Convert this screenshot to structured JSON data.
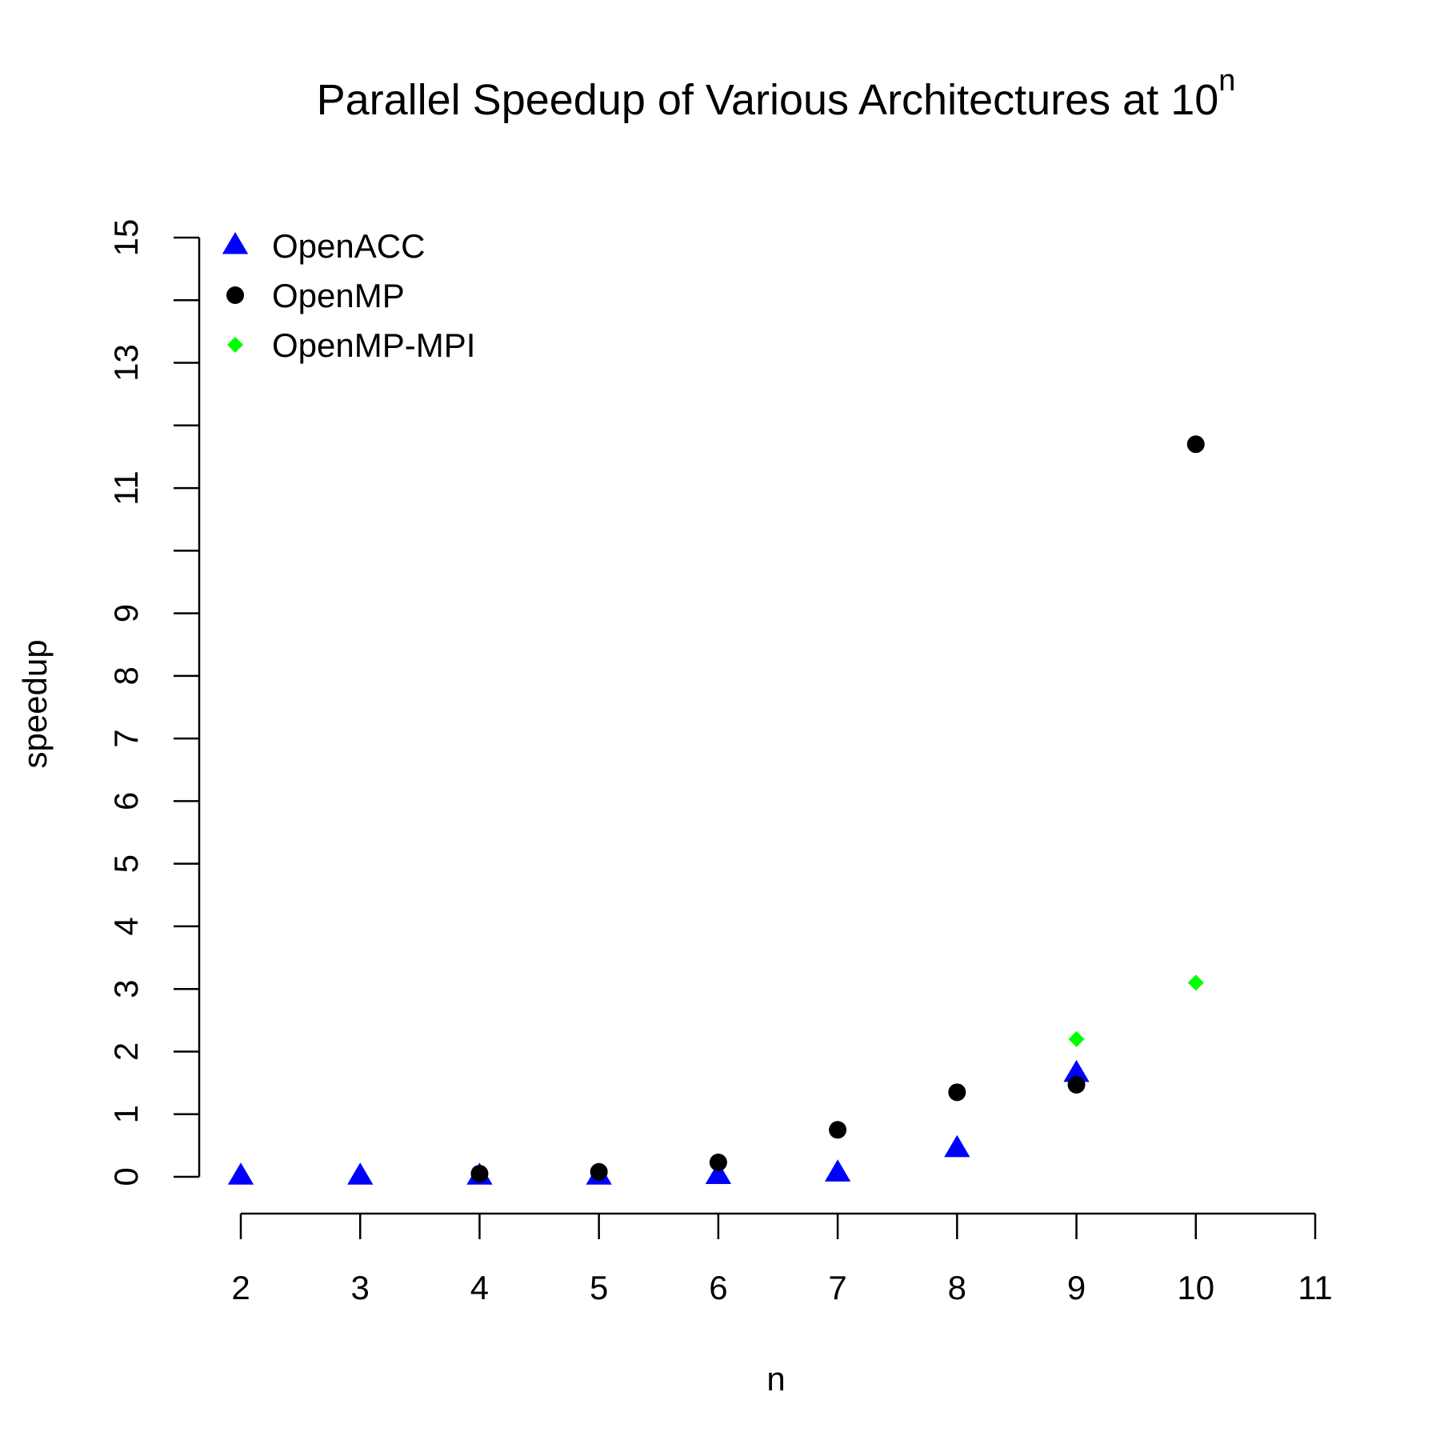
{
  "chart_data": {
    "type": "scatter",
    "title": "Parallel Speedup of Various Architectures at 10",
    "title_superscript": "n",
    "xlabel": "n",
    "ylabel": "speedup",
    "xlim": [
      2,
      11
    ],
    "ylim": [
      0,
      15
    ],
    "x_ticks": [
      2,
      3,
      4,
      5,
      6,
      7,
      8,
      9,
      10,
      11
    ],
    "x_tick_labels": [
      "2",
      "3",
      "4",
      "5",
      "6",
      "7",
      "8",
      "9",
      "10",
      "11"
    ],
    "y_ticks": [
      0,
      1,
      2,
      3,
      4,
      5,
      6,
      7,
      8,
      9,
      10,
      11,
      12,
      13,
      14,
      15
    ],
    "y_tick_labels": [
      "0",
      "1",
      "2",
      "3",
      "4",
      "5",
      "6",
      "7",
      "8",
      "9",
      "",
      "11",
      "",
      "13",
      "",
      "15"
    ],
    "grid": false,
    "legend_position": "top-left",
    "series": [
      {
        "name": "OpenACC",
        "marker": "triangle",
        "color": "#0000ff",
        "points": [
          {
            "x": 2,
            "y": 0.01
          },
          {
            "x": 3,
            "y": 0.01
          },
          {
            "x": 4,
            "y": 0.01
          },
          {
            "x": 5,
            "y": 0.01
          },
          {
            "x": 6,
            "y": 0.02
          },
          {
            "x": 7,
            "y": 0.06
          },
          {
            "x": 8,
            "y": 0.45
          },
          {
            "x": 9,
            "y": 1.65
          }
        ]
      },
      {
        "name": "OpenMP",
        "marker": "circle",
        "color": "#000000",
        "points": [
          {
            "x": 4,
            "y": 0.05
          },
          {
            "x": 5,
            "y": 0.08
          },
          {
            "x": 6,
            "y": 0.23
          },
          {
            "x": 7,
            "y": 0.75
          },
          {
            "x": 8,
            "y": 1.35
          },
          {
            "x": 9,
            "y": 1.47
          },
          {
            "x": 10,
            "y": 11.7
          }
        ]
      },
      {
        "name": "OpenMP-MPI",
        "marker": "diamond",
        "color": "#00ff00",
        "points": [
          {
            "x": 9,
            "y": 2.2
          },
          {
            "x": 10,
            "y": 3.1
          }
        ]
      }
    ]
  }
}
